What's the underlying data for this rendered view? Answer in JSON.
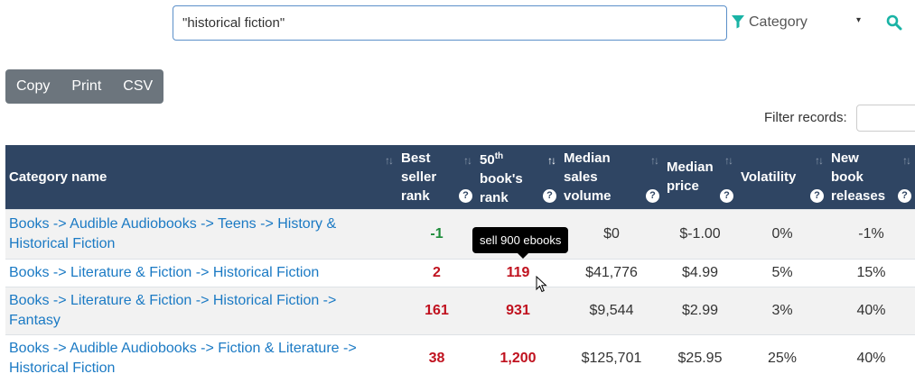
{
  "search": {
    "value": "\"historical fiction\""
  },
  "category_select": {
    "label": "Category",
    "caret": "▾"
  },
  "colors": {
    "header_bg": "#2f4563",
    "link": "#1b7ac4",
    "rank_red": "#c0121f",
    "rank_green": "#1d8c3a",
    "accent": "#19b3a5"
  },
  "export_buttons": [
    "Copy",
    "Print",
    "CSV"
  ],
  "filter": {
    "label": "Filter records:"
  },
  "table": {
    "headers": {
      "category": "Category name",
      "best_seller": [
        "Best",
        "seller",
        "rank"
      ],
      "fiftieth_sup": "th",
      "fiftieth": [
        "50",
        "book's",
        "rank"
      ],
      "median_sales": [
        "Median",
        "sales",
        "volume"
      ],
      "median_price": [
        "Median",
        "price"
      ],
      "volatility": "Volatility",
      "new_releases": [
        "New",
        "book",
        "releases"
      ],
      "sort_icon": "↑↓",
      "help_icon": "?"
    },
    "rows": [
      {
        "category": [
          "Books -> Audible Audiobooks -> Teens -> History &",
          "Historical Fiction"
        ],
        "best": "-1",
        "fiftieth": "",
        "sales": "$0",
        "price": "$-1.00",
        "volatility": "0%",
        "new": "-1%"
      },
      {
        "category": [
          "Books -> Literature & Fiction -> Historical Fiction"
        ],
        "best": "2",
        "fiftieth": "119",
        "sales": "$41,776",
        "price": "$4.99",
        "volatility": "5%",
        "new": "15%"
      },
      {
        "category": [
          "Books -> Literature & Fiction -> Historical Fiction ->",
          "Fantasy"
        ],
        "best": "161",
        "fiftieth": "931",
        "sales": "$9,544",
        "price": "$2.99",
        "volatility": "3%",
        "new": "40%"
      },
      {
        "category": [
          "Books -> Audible Audiobooks -> Fiction & Literature ->",
          "Historical Fiction"
        ],
        "best": "38",
        "fiftieth": "1,200",
        "sales": "$125,701",
        "price": "$25.95",
        "volatility": "25%",
        "new": "40%"
      }
    ]
  },
  "tooltip": {
    "text": "sell 900 ebooks"
  }
}
